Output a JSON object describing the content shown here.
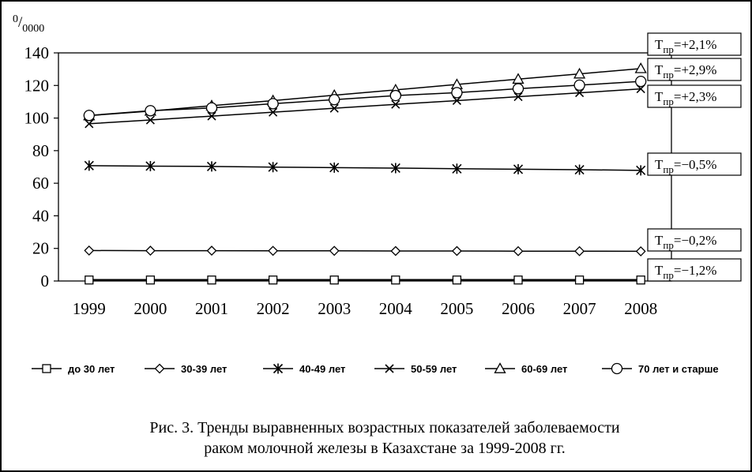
{
  "chart_data": {
    "type": "line",
    "unit_label": "0/0000",
    "x": [
      "1999",
      "2000",
      "2001",
      "2002",
      "2003",
      "2004",
      "2005",
      "2006",
      "2007",
      "2008"
    ],
    "ylim": [
      0,
      140
    ],
    "yticks": [
      "0",
      "20",
      "40",
      "60",
      "80",
      "100",
      "120",
      "140"
    ],
    "grid": false,
    "legend_position": "bottom",
    "series": [
      {
        "name": "до 30 лет",
        "marker": "square",
        "values": [
          0.6,
          0.6,
          0.6,
          0.6,
          0.6,
          0.6,
          0.6,
          0.6,
          0.6,
          0.6
        ]
      },
      {
        "name": "30-39 лет",
        "marker": "diamond",
        "values": [
          18.7,
          18.6,
          18.6,
          18.5,
          18.5,
          18.4,
          18.4,
          18.3,
          18.3,
          18.2
        ]
      },
      {
        "name": "40-49 лет",
        "marker": "asterisk",
        "values": [
          70.8,
          70.5,
          70.3,
          69.9,
          69.6,
          69.3,
          68.9,
          68.6,
          68.3,
          67.9
        ]
      },
      {
        "name": "50-59 лет",
        "marker": "x",
        "values": [
          96.5,
          98.8,
          101.2,
          103.6,
          106.0,
          108.4,
          110.7,
          113.1,
          115.5,
          117.9
        ]
      },
      {
        "name": "60-69 лет",
        "marker": "triangle",
        "values": [
          101.5,
          104.3,
          107.6,
          110.7,
          114.0,
          117.3,
          120.6,
          123.9,
          127.1,
          130.4
        ]
      },
      {
        "name": "70 лет и старше",
        "marker": "circle",
        "values": [
          101.6,
          104.5,
          106.2,
          108.8,
          111.3,
          113.8,
          115.6,
          118.0,
          120.2,
          122.5
        ]
      }
    ],
    "annotations": [
      {
        "base": "Т",
        "sub": "пр",
        "rest": "=+2,1%"
      },
      {
        "base": "Т",
        "sub": "пр",
        "rest": "=+2,9%"
      },
      {
        "base": "Т",
        "sub": "пр",
        "rest": "=+2,3%"
      },
      {
        "base": "Т",
        "sub": "пр",
        "rest": "=−0,5%"
      },
      {
        "base": "Т",
        "sub": "пр",
        "rest": "=−0,2%"
      },
      {
        "base": "Т",
        "sub": "пр",
        "rest": "=−1,2%"
      }
    ]
  },
  "caption": {
    "line1": "Рис. 3. Тренды выравненных возрастных показателей заболеваемости",
    "line2": "раком молочной железы в Казахстане за 1999-2008 гг."
  }
}
